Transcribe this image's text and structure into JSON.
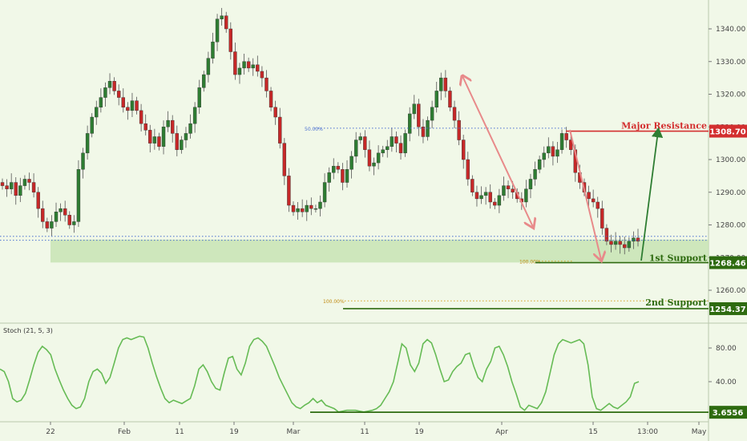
{
  "chart_data": [
    {
      "type": "candlestick",
      "title": "",
      "x_ticks": [
        "22",
        "Feb",
        "11",
        "19",
        "Mar",
        "11",
        "19",
        "Apr",
        "15",
        "13:00",
        "May"
      ],
      "y_ticks": [
        1260.0,
        1270.0,
        1280.0,
        1290.0,
        1300.0,
        1310.0,
        1320.0,
        1330.0,
        1340.0
      ],
      "ylim": [
        1253,
        1350
      ],
      "grid": false,
      "candles_close": [
        1292,
        1291,
        1293,
        1289,
        1292,
        1294,
        1293,
        1290,
        1285,
        1281,
        1279,
        1281,
        1284,
        1285,
        1283,
        1280,
        1281,
        1297,
        1302,
        1308,
        1313,
        1316,
        1319,
        1322,
        1324,
        1321,
        1319,
        1316,
        1315,
        1318,
        1315,
        1311,
        1309,
        1305,
        1307,
        1304,
        1310,
        1312,
        1308,
        1303,
        1306,
        1308,
        1311,
        1316,
        1322,
        1326,
        1331,
        1336,
        1343,
        1344,
        1340,
        1333,
        1326,
        1328,
        1330,
        1328,
        1329,
        1327,
        1325,
        1321,
        1316,
        1313,
        1305,
        1295,
        1286,
        1284,
        1285,
        1284,
        1286,
        1285,
        1285,
        1287,
        1293,
        1296,
        1298,
        1297,
        1293,
        1297,
        1301,
        1306,
        1307,
        1303,
        1298,
        1299,
        1302,
        1303,
        1304,
        1307,
        1305,
        1302,
        1308,
        1314,
        1317,
        1310,
        1307,
        1312,
        1316,
        1321,
        1325,
        1321,
        1316,
        1312,
        1306,
        1300,
        1294,
        1290,
        1288,
        1289,
        1290,
        1287,
        1286,
        1289,
        1292,
        1291,
        1290,
        1288,
        1287,
        1291,
        1294,
        1297,
        1300,
        1302,
        1304,
        1301,
        1303,
        1308,
        1306,
        1303,
        1296,
        1293,
        1290,
        1288,
        1287,
        1285,
        1279,
        1275,
        1274,
        1275,
        1274,
        1273,
        1275,
        1276,
        1275
      ],
      "annotations": {
        "fib_top_label": "50.00%",
        "fib_mid_label": "100.00%",
        "fib_low_label": "100.00%",
        "major_resistance": {
          "label": "Major Resistance",
          "price": 1308.7
        },
        "first_support": {
          "label": "1st Support",
          "price": 1268.46
        },
        "second_support": {
          "label": "2nd Support",
          "price": 1254.37
        },
        "current_price": 1275.6,
        "fib_50_price": 1309.6,
        "fib_100_price": 1257.0
      },
      "price_tags": [
        "1308.70",
        "1268.46",
        "1254.37"
      ],
      "colors": {
        "up": "#2e7d32",
        "down": "#c62828",
        "resistance": "#d32f2f",
        "support": "#2e6b10",
        "arrow": "#e88a8a",
        "zone": "#c8e4b4"
      }
    },
    {
      "type": "line",
      "title": "Stoch (21, 5, 3)",
      "y_ticks": [
        40.0,
        80.0
      ],
      "ylim": [
        -5,
        100
      ],
      "support_value": 3.6556,
      "support_tag": "3.6556",
      "values": [
        55,
        52,
        40,
        20,
        16,
        18,
        26,
        42,
        60,
        75,
        82,
        78,
        72,
        55,
        42,
        30,
        20,
        12,
        8,
        10,
        20,
        40,
        52,
        55,
        50,
        38,
        45,
        62,
        80,
        90,
        92,
        90,
        92,
        94,
        93,
        80,
        62,
        46,
        32,
        20,
        15,
        18,
        16,
        14,
        17,
        20,
        35,
        55,
        60,
        52,
        40,
        32,
        30,
        50,
        68,
        70,
        55,
        48,
        62,
        82,
        90,
        92,
        88,
        82,
        70,
        58,
        45,
        35,
        25,
        15,
        10,
        8,
        12,
        15,
        20,
        15,
        18,
        12,
        10,
        8,
        4,
        5,
        6,
        6,
        6,
        5,
        4,
        5,
        6,
        8,
        12,
        20,
        28,
        40,
        62,
        85,
        80,
        60,
        52,
        62,
        85,
        90,
        86,
        72,
        55,
        40,
        42,
        52,
        58,
        62,
        72,
        74,
        58,
        45,
        40,
        55,
        64,
        80,
        82,
        72,
        58,
        40,
        26,
        10,
        6,
        12,
        10,
        8,
        15,
        28,
        50,
        72,
        85,
        90,
        88,
        86,
        88,
        90,
        85,
        60,
        22,
        8,
        6,
        10,
        14,
        10,
        8,
        12,
        16,
        22,
        38,
        40
      ]
    }
  ]
}
